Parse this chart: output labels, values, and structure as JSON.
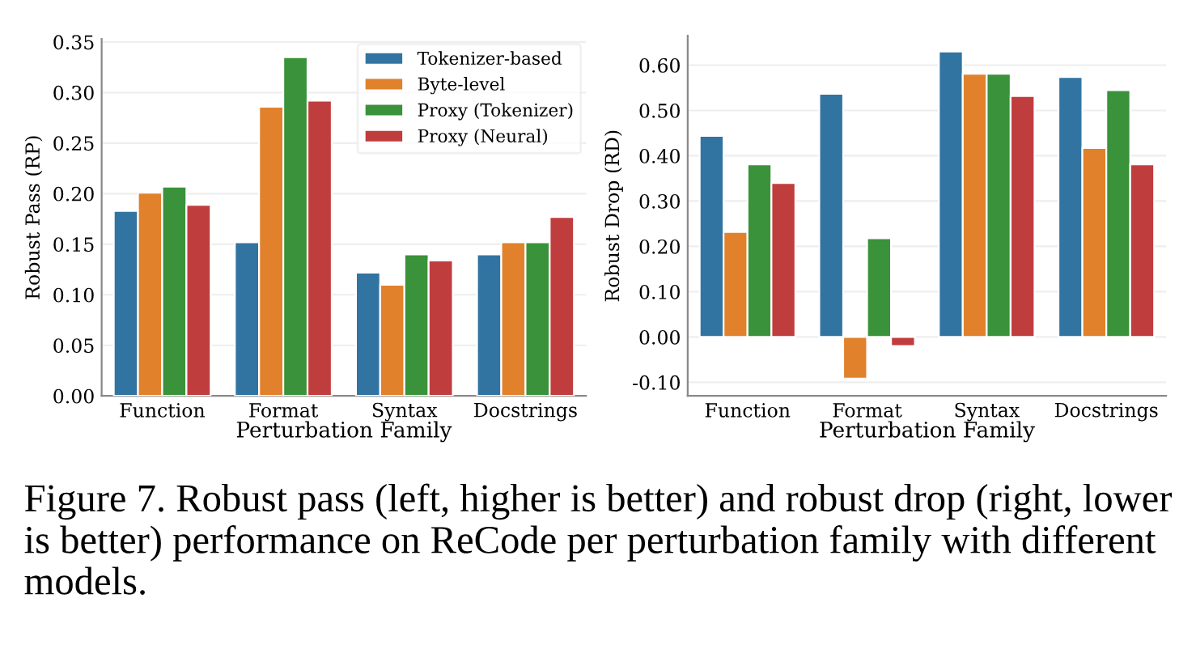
{
  "chart_data": [
    {
      "type": "bar",
      "xlabel": "Perturbation Family",
      "ylabel": "Robust Pass (RP)",
      "categories": [
        "Function",
        "Format",
        "Syntax",
        "Docstrings"
      ],
      "series": [
        {
          "name": "Tokenizer-based",
          "color": "#3274a1",
          "values": [
            0.183,
            0.152,
            0.122,
            0.14
          ]
        },
        {
          "name": "Byte-level",
          "color": "#e1812c",
          "values": [
            0.201,
            0.286,
            0.11,
            0.152
          ]
        },
        {
          "name": "Proxy (Tokenizer)",
          "color": "#3a923a",
          "values": [
            0.207,
            0.335,
            0.14,
            0.152
          ]
        },
        {
          "name": "Proxy (Neural)",
          "color": "#c03d3e",
          "values": [
            0.189,
            0.292,
            0.134,
            0.177
          ]
        }
      ],
      "ylim": [
        0,
        0.353
      ],
      "yticks": [
        {
          "value": 0,
          "label": "0.00"
        },
        {
          "value": 0.05,
          "label": "0.05"
        },
        {
          "value": 0.1,
          "label": "0.10"
        },
        {
          "value": 0.15,
          "label": "0.15"
        },
        {
          "value": 0.2,
          "label": "0.20"
        },
        {
          "value": 0.25,
          "label": "0.25"
        },
        {
          "value": 0.3,
          "label": "0.30"
        },
        {
          "value": 0.35,
          "label": "0.35"
        }
      ],
      "grid": "y",
      "legend": "top right"
    },
    {
      "type": "bar",
      "xlabel": "Perturbation Family",
      "ylabel": "Robust Drop (RD)",
      "categories": [
        "Function",
        "Format",
        "Syntax",
        "Docstrings"
      ],
      "series": [
        {
          "color": "#3274a1",
          "values": [
            0.444,
            0.537,
            0.63,
            0.574
          ]
        },
        {
          "color": "#e1812c",
          "values": [
            0.232,
            -0.092,
            0.581,
            0.417
          ]
        },
        {
          "color": "#3a923a",
          "values": [
            0.381,
            0.218,
            0.581,
            0.545
          ]
        },
        {
          "color": "#c03d3e",
          "values": [
            0.34,
            -0.02,
            0.532,
            0.381
          ]
        }
      ],
      "ylim": [
        -0.13,
        0.665
      ],
      "yticks": [
        {
          "value": -0.1,
          "label": "-0.10"
        },
        {
          "value": 0,
          "label": "0.00"
        },
        {
          "value": 0.1,
          "label": "0.10"
        },
        {
          "value": 0.2,
          "label": "0.20"
        },
        {
          "value": 0.3,
          "label": "0.30"
        },
        {
          "value": 0.4,
          "label": "0.40"
        },
        {
          "value": 0.5,
          "label": "0.50"
        },
        {
          "value": 0.6,
          "label": "0.60"
        }
      ],
      "grid": "y",
      "annotations": [
        "Figure 7. Robust pass (left, higher is better) and robust drop (right, lower is better) performance on ReCode per perturbation family with different models."
      ]
    }
  ]
}
